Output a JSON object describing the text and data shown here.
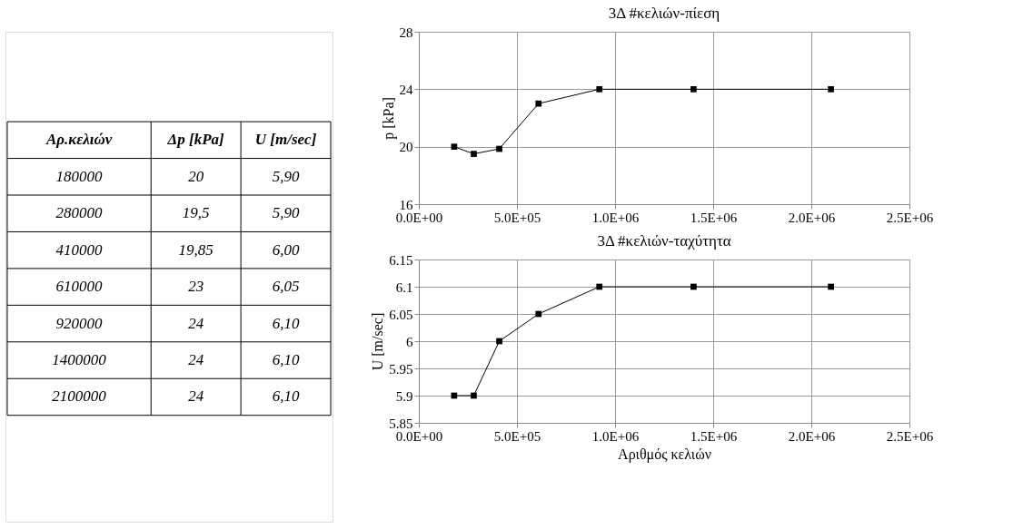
{
  "chart_data": [
    {
      "type": "line",
      "title": "3Δ #κελιών-πίεση",
      "ylabel": "p [kPa]",
      "x": [
        180000,
        280000,
        410000,
        610000,
        920000,
        1400000,
        2100000
      ],
      "series": [
        {
          "color": "#000000",
          "values": [
            20,
            19.5,
            19.85,
            23,
            24,
            24,
            24
          ]
        }
      ],
      "value_labels": [
        "20",
        "19,5",
        "19,85",
        "23",
        "24",
        "24",
        "24"
      ],
      "annotations": [
        "Αρ.κελιών",
        "Δp [kPa]",
        "180000",
        "280000",
        "410000",
        "610000",
        "920000",
        "1400000",
        "2100000"
      ],
      "xlim": [
        0,
        2500000
      ],
      "xticks": [
        {
          "value": 0,
          "label": "0.0E+00"
        },
        {
          "value": 500000,
          "label": "5.0E+05"
        },
        {
          "value": 1000000,
          "label": "1.0E+06"
        },
        {
          "value": 1500000,
          "label": "1.5E+06"
        },
        {
          "value": 2000000,
          "label": "2.0E+06"
        },
        {
          "value": 2500000,
          "label": "2.5E+06"
        }
      ],
      "ylim": [
        16,
        28
      ],
      "yticks": [
        16,
        20,
        24,
        28
      ],
      "grid": true,
      "marker": "square"
    },
    {
      "type": "line",
      "title": "3Δ #κελιών-ταχύτητα",
      "ylabel": "U [m/sec]",
      "xlabel": "Αριθμός κελιών",
      "x": [
        180000,
        280000,
        410000,
        610000,
        920000,
        1400000,
        2100000
      ],
      "series": [
        {
          "color": "#000000",
          "values": [
            5.9,
            5.9,
            6.0,
            6.05,
            6.1,
            6.1,
            6.1
          ]
        }
      ],
      "value_labels": [
        "5,90",
        "5,90",
        "6,00",
        "6,05",
        "6,10",
        "6,10",
        "6,10"
      ],
      "annotations": [
        "U [m/sec]"
      ],
      "xlim": [
        0,
        2500000
      ],
      "xticks": [
        {
          "value": 0,
          "label": "0.0E+00"
        },
        {
          "value": 500000,
          "label": "5.0E+05"
        },
        {
          "value": 1000000,
          "label": "1.0E+06"
        },
        {
          "value": 1500000,
          "label": "1.5E+06"
        },
        {
          "value": 2000000,
          "label": "2.0E+06"
        },
        {
          "value": 2500000,
          "label": "2.5E+06"
        }
      ],
      "ylim": [
        5.85,
        6.15
      ],
      "yticks": [
        5.85,
        5.9,
        5.95,
        6,
        6.05,
        6.1,
        6.15
      ],
      "grid": true,
      "marker": "square"
    }
  ]
}
